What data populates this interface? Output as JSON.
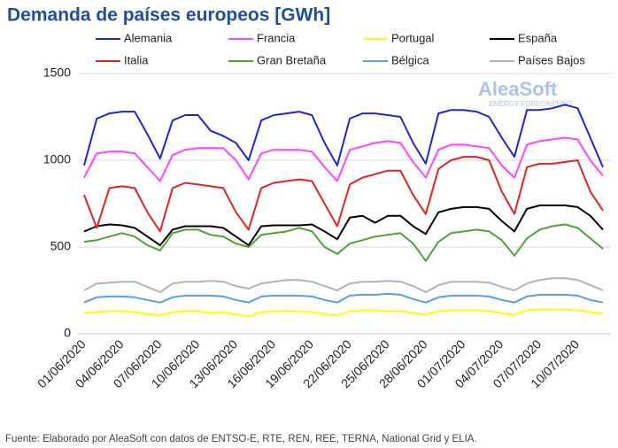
{
  "chart_data": {
    "type": "line",
    "title": "Demanda de países europeos [GWh]",
    "logo": {
      "name": "AleaSoft",
      "tagline": "ENERGY FORECASTING"
    },
    "source": "Fuente: Elaborado por AleaSoft con datos de ENTSO-E, RTE, REN, REE, TERNA, National Grid y ELIA.",
    "categories": [
      "01/06/2020",
      null,
      null,
      "04/06/2020",
      null,
      null,
      "07/06/2020",
      null,
      null,
      "10/06/2020",
      null,
      null,
      "13/06/2020",
      null,
      null,
      "16/06/2020",
      null,
      null,
      "19/06/2020",
      null,
      null,
      "22/06/2020",
      null,
      null,
      "25/06/2020",
      null,
      null,
      "28/06/2020",
      null,
      null,
      "01/07/2020",
      null,
      null,
      "04/07/2020",
      null,
      null,
      "07/07/2020",
      null,
      null,
      "10/07/2020",
      null,
      null
    ],
    "ylim": [
      0,
      1500
    ],
    "yticks": [
      0,
      500,
      1000,
      1500
    ],
    "grid": true,
    "series": [
      {
        "name": "Alemania",
        "color": "#2424d4",
        "values": [
          970,
          1240,
          1270,
          1280,
          1280,
          1150,
          1010,
          1230,
          1260,
          1260,
          1170,
          1140,
          1100,
          1000,
          1230,
          1260,
          1270,
          1280,
          1260,
          1100,
          970,
          1240,
          1270,
          1270,
          1260,
          1250,
          1100,
          980,
          1270,
          1290,
          1290,
          1280,
          1250,
          1130,
          1020,
          1290,
          1290,
          1300,
          1320,
          1300,
          1130,
          960
        ]
      },
      {
        "name": "Francia",
        "color": "#ff44ff",
        "values": [
          900,
          1040,
          1050,
          1050,
          1040,
          960,
          880,
          1030,
          1060,
          1070,
          1070,
          1070,
          1000,
          890,
          1040,
          1060,
          1060,
          1060,
          1050,
          960,
          880,
          1060,
          1080,
          1100,
          1110,
          1100,
          990,
          900,
          1060,
          1090,
          1090,
          1080,
          1070,
          970,
          900,
          1090,
          1110,
          1120,
          1130,
          1120,
          1000,
          910
        ]
      },
      {
        "name": "Portugal",
        "color": "#ffff00",
        "values": [
          120,
          125,
          130,
          130,
          125,
          115,
          105,
          125,
          130,
          130,
          120,
          125,
          110,
          100,
          125,
          130,
          130,
          130,
          125,
          115,
          105,
          130,
          135,
          135,
          130,
          130,
          120,
          110,
          130,
          135,
          135,
          135,
          130,
          120,
          110,
          135,
          140,
          140,
          140,
          135,
          125,
          115
        ]
      },
      {
        "name": "España",
        "color": "#000000",
        "values": [
          590,
          620,
          630,
          625,
          610,
          560,
          510,
          600,
          620,
          620,
          620,
          610,
          560,
          510,
          620,
          625,
          625,
          625,
          630,
          590,
          545,
          670,
          680,
          640,
          680,
          680,
          620,
          575,
          700,
          720,
          730,
          730,
          720,
          650,
          590,
          720,
          740,
          740,
          740,
          730,
          680,
          600
        ]
      },
      {
        "name": "Italia",
        "color": "#e02424",
        "values": [
          800,
          610,
          840,
          850,
          840,
          700,
          590,
          840,
          870,
          860,
          850,
          840,
          700,
          600,
          840,
          870,
          880,
          890,
          880,
          750,
          620,
          860,
          900,
          920,
          940,
          940,
          800,
          690,
          950,
          1000,
          1020,
          1020,
          1000,
          820,
          690,
          960,
          980,
          980,
          990,
          1000,
          820,
          710
        ]
      },
      {
        "name": "Gran Bretaña",
        "color": "#54a034",
        "values": [
          530,
          540,
          560,
          580,
          560,
          510,
          480,
          580,
          600,
          600,
          570,
          560,
          520,
          500,
          570,
          580,
          590,
          610,
          590,
          500,
          460,
          520,
          540,
          560,
          570,
          580,
          520,
          420,
          530,
          580,
          590,
          600,
          590,
          540,
          450,
          550,
          600,
          620,
          630,
          610,
          550,
          490
        ]
      },
      {
        "name": "Bélgica",
        "color": "#56a0e0",
        "values": [
          180,
          210,
          215,
          215,
          210,
          195,
          180,
          210,
          220,
          220,
          220,
          215,
          195,
          180,
          215,
          220,
          220,
          220,
          215,
          195,
          180,
          220,
          225,
          225,
          230,
          225,
          200,
          180,
          210,
          220,
          220,
          220,
          215,
          195,
          180,
          215,
          225,
          225,
          225,
          220,
          195,
          180
        ]
      },
      {
        "name": "Países Bajos",
        "color": "#b4b4b4",
        "values": [
          250,
          290,
          295,
          300,
          300,
          270,
          240,
          290,
          300,
          300,
          305,
          300,
          275,
          260,
          290,
          300,
          310,
          310,
          300,
          275,
          250,
          290,
          300,
          300,
          305,
          300,
          275,
          240,
          280,
          300,
          300,
          300,
          295,
          270,
          250,
          290,
          310,
          320,
          320,
          310,
          280,
          250
        ]
      }
    ]
  }
}
